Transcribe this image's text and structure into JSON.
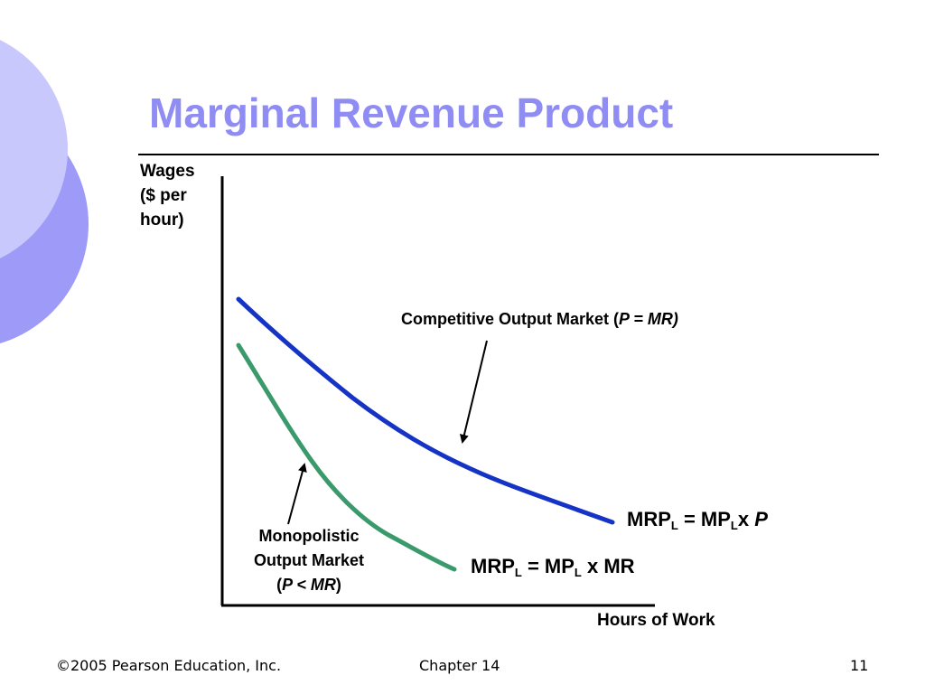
{
  "slide": {
    "title": "Marginal Revenue Product",
    "colors": {
      "title": "#8f8cf4",
      "decor_light": "#c9c8fc",
      "decor_dark": "#9d9bf7",
      "competitive_curve": "#1533c4",
      "monopolistic_curve": "#3a9a6b"
    }
  },
  "diagram": {
    "y_axis_label": [
      "Wages",
      "($ per",
      "hour)"
    ],
    "x_axis_label": "Hours of Work",
    "competitive": {
      "label_text": "Competitive Output Market (",
      "label_condition": "P = MR)",
      "formula": {
        "lhs": "MRP",
        "lhs_sub": "L",
        "eq": " = MP",
        "mid_sub": "L",
        "tail": "x ",
        "tail_italic": "P"
      }
    },
    "monopolistic": {
      "label_line1": "Monopolistic",
      "label_line2": "Output Market",
      "label_open": "(",
      "label_condition": "P < MR",
      "label_close": ")",
      "formula": {
        "lhs": "MRP",
        "lhs_sub": "L",
        "eq": " = MP",
        "mid_sub": "L",
        "tail": " x MR"
      }
    }
  },
  "footer": {
    "copyright": "©2005 Pearson Education, Inc.",
    "chapter": "Chapter 14",
    "page": "11"
  }
}
